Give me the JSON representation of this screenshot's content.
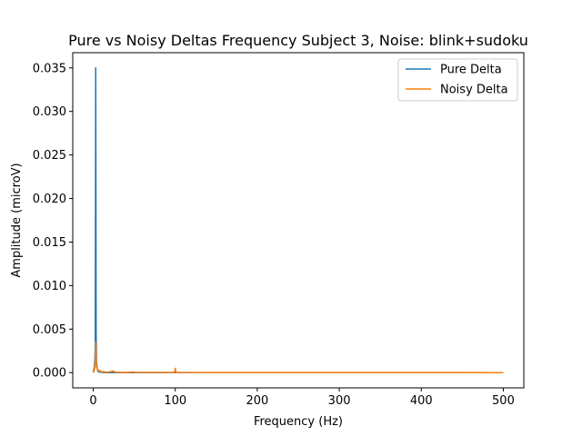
{
  "chart_data": {
    "type": "line",
    "title": "Pure vs Noisy Deltas Frequency Subject 3, Noise: blink+sudoku",
    "xlabel": "Frequency (Hz)",
    "ylabel": "Amplitude (microV)",
    "xlim": [
      -25,
      525
    ],
    "ylim": [
      -0.00175,
      0.03675
    ],
    "xticks": [
      0,
      100,
      200,
      300,
      400,
      500
    ],
    "xtick_labels": [
      "0",
      "100",
      "200",
      "300",
      "400",
      "500"
    ],
    "yticks": [
      0.0,
      0.005,
      0.01,
      0.015,
      0.02,
      0.025,
      0.03,
      0.035
    ],
    "ytick_labels": [
      "0.000",
      "0.005",
      "0.010",
      "0.015",
      "0.020",
      "0.025",
      "0.030",
      "0.035"
    ],
    "grid": false,
    "legend_position": "top-right",
    "series": [
      {
        "name": "Pure Delta",
        "color": "#1f77b4",
        "points": [
          [
            0,
            0.0
          ],
          [
            0.5,
            0.0003
          ],
          [
            1,
            0.0005
          ],
          [
            1.5,
            0.0008
          ],
          [
            2,
            0.0015
          ],
          [
            2.5,
            0.0035
          ],
          [
            3,
            0.035
          ],
          [
            3.5,
            0.0045
          ],
          [
            4,
            0.0012
          ],
          [
            5,
            0.0003
          ],
          [
            6,
            0.0001
          ],
          [
            8,
            5e-05
          ],
          [
            15,
            0.0
          ],
          [
            100,
            0.0
          ],
          [
            500,
            0.0
          ]
        ]
      },
      {
        "name": "Noisy Delta",
        "color": "#ff7f0e",
        "points": [
          [
            0,
            0.0
          ],
          [
            1,
            0.0002
          ],
          [
            1.5,
            0.0004
          ],
          [
            2,
            0.0008
          ],
          [
            2.5,
            0.0012
          ],
          [
            3,
            0.0035
          ],
          [
            3.5,
            0.0015
          ],
          [
            4,
            0.0006
          ],
          [
            5,
            0.0004
          ],
          [
            6,
            0.0002
          ],
          [
            7,
            0.0003
          ],
          [
            8,
            0.0001
          ],
          [
            9,
            0.0002
          ],
          [
            10,
            8e-05
          ],
          [
            12,
            0.00012
          ],
          [
            15,
            5e-05
          ],
          [
            20,
            8e-05
          ],
          [
            25,
            0.0002
          ],
          [
            26,
            5e-05
          ],
          [
            30,
            4e-05
          ],
          [
            40,
            3e-05
          ],
          [
            50,
            8e-05
          ],
          [
            51,
            2e-05
          ],
          [
            60,
            2e-05
          ],
          [
            80,
            2e-05
          ],
          [
            99,
            3e-05
          ],
          [
            100,
            0.0005
          ],
          [
            101,
            3e-05
          ],
          [
            150,
            1e-05
          ],
          [
            200,
            1e-05
          ],
          [
            300,
            1e-05
          ],
          [
            400,
            1e-05
          ],
          [
            500,
            0.0
          ]
        ]
      }
    ]
  }
}
